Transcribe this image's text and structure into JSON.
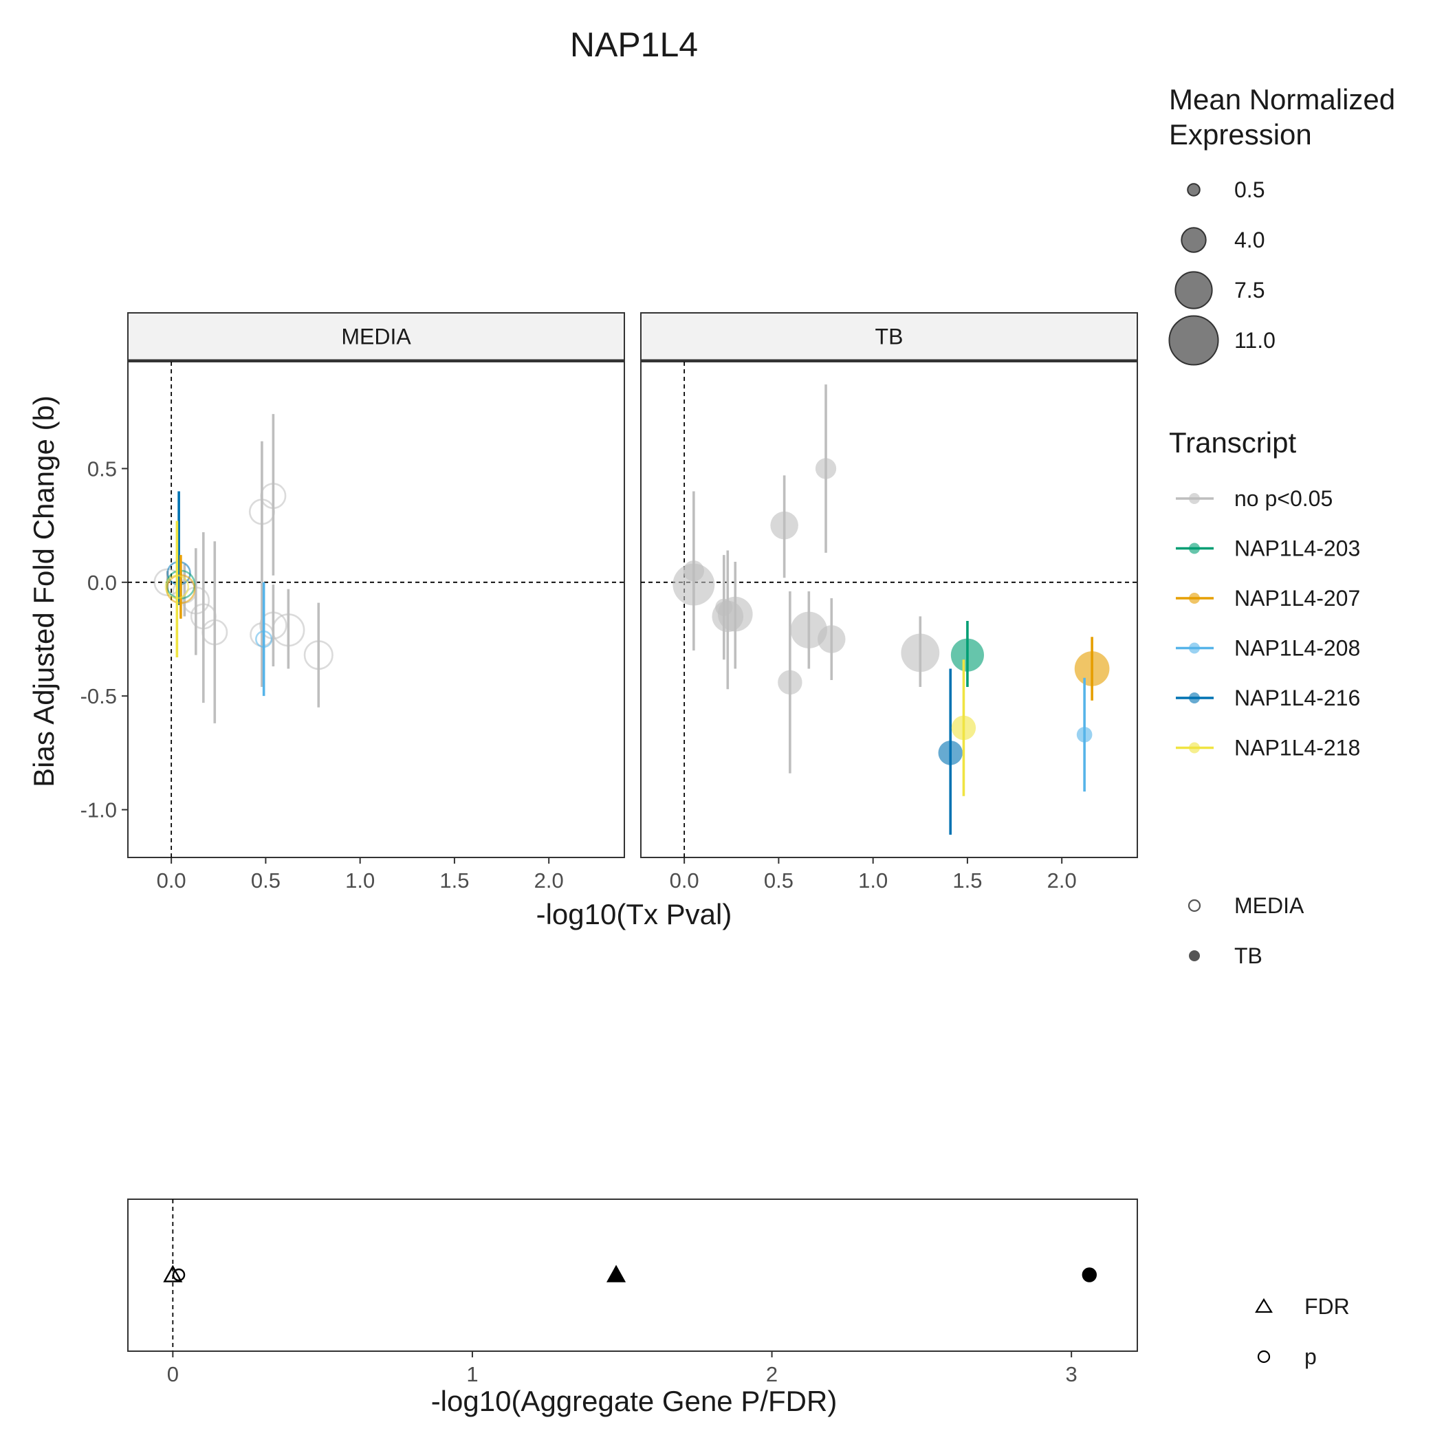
{
  "title": "NAP1L4",
  "colors": {
    "no p<0.05": "#BEBEBE",
    "NAP1L4-203": "#009E73",
    "NAP1L4-207": "#E69F00",
    "NAP1L4-208": "#56B4E9",
    "NAP1L4-216": "#0072B2",
    "NAP1L4-218": "#F0E442"
  },
  "legend": {
    "size_title_line1": "Mean Normalized",
    "size_title_line2": "Expression",
    "size_labels": [
      "0.5",
      "4.0",
      "7.5",
      "11.0"
    ],
    "size_values": [
      0.5,
      4.0,
      7.5,
      11.0
    ],
    "transcript_title": "Transcript",
    "transcripts": [
      "no p<0.05",
      "NAP1L4-203",
      "NAP1L4-207",
      "NAP1L4-208",
      "NAP1L4-216",
      "NAP1L4-218"
    ],
    "conditions": [
      "MEDIA",
      "TB"
    ],
    "stats": [
      "FDR",
      "p"
    ]
  },
  "chart_data": [
    {
      "type": "scatter",
      "facets": [
        "MEDIA",
        "TB"
      ],
      "xlabel": "-log10(Tx Pval)",
      "ylabel": "Bias Adjusted Fold Change (b)",
      "xlim": [
        -0.23,
        2.4
      ],
      "ylim": [
        -1.21,
        0.97
      ],
      "xticks": [
        0.0,
        0.5,
        1.0,
        1.5,
        2.0
      ],
      "xtick_labels": [
        "0.0",
        "0.5",
        "1.0",
        "1.5",
        "2.0"
      ],
      "yticks": [
        -1.0,
        -0.5,
        0.0,
        0.5
      ],
      "ytick_labels": [
        "-1.0",
        "-0.5",
        "0.0",
        "0.5"
      ],
      "reference_lines": {
        "x": 0,
        "y": 0
      },
      "points": [
        {
          "facet": "MEDIA",
          "transcript": "no p<0.05",
          "x": -0.02,
          "y": 0.0,
          "lo": -0.05,
          "hi": 0.05,
          "size": 4.5
        },
        {
          "facet": "MEDIA",
          "transcript": "no p<0.05",
          "x": 0.07,
          "y": -0.04,
          "lo": -0.15,
          "hi": 0.08,
          "size": 3.5
        },
        {
          "facet": "MEDIA",
          "transcript": "no p<0.05",
          "x": 0.13,
          "y": -0.08,
          "lo": -0.32,
          "hi": 0.15,
          "size": 4.5
        },
        {
          "facet": "MEDIA",
          "transcript": "no p<0.05",
          "x": 0.17,
          "y": -0.15,
          "lo": -0.53,
          "hi": 0.22,
          "size": 4.0
        },
        {
          "facet": "MEDIA",
          "transcript": "no p<0.05",
          "x": 0.23,
          "y": -0.22,
          "lo": -0.62,
          "hi": 0.18,
          "size": 4.0
        },
        {
          "facet": "MEDIA",
          "transcript": "no p<0.05",
          "x": 0.48,
          "y": 0.31,
          "lo": 0.0,
          "hi": 0.62,
          "size": 4.0
        },
        {
          "facet": "MEDIA",
          "transcript": "no p<0.05",
          "x": 0.54,
          "y": 0.38,
          "lo": 0.03,
          "hi": 0.74,
          "size": 4.0
        },
        {
          "facet": "MEDIA",
          "transcript": "no p<0.05",
          "x": 0.48,
          "y": -0.23,
          "lo": -0.46,
          "hi": 0.0,
          "size": 3.5
        },
        {
          "facet": "MEDIA",
          "transcript": "no p<0.05",
          "x": 0.54,
          "y": -0.19,
          "lo": -0.37,
          "hi": -0.01,
          "size": 4.5
        },
        {
          "facet": "MEDIA",
          "transcript": "no p<0.05",
          "x": 0.62,
          "y": -0.21,
          "lo": -0.38,
          "hi": -0.03,
          "size": 6.0
        },
        {
          "facet": "MEDIA",
          "transcript": "no p<0.05",
          "x": 0.78,
          "y": -0.32,
          "lo": -0.55,
          "hi": -0.09,
          "size": 5.0
        },
        {
          "facet": "MEDIA",
          "transcript": "NAP1L4-216",
          "x": 0.04,
          "y": 0.04,
          "lo": -0.1,
          "hi": 0.4,
          "size": 3.5
        },
        {
          "facet": "MEDIA",
          "transcript": "NAP1L4-203",
          "x": 0.05,
          "y": -0.01,
          "lo": -0.07,
          "hi": 0.05,
          "size": 5.0
        },
        {
          "facet": "MEDIA",
          "transcript": "NAP1L4-207",
          "x": 0.05,
          "y": -0.03,
          "lo": -0.16,
          "hi": 0.12,
          "size": 5.0
        },
        {
          "facet": "MEDIA",
          "transcript": "NAP1L4-218",
          "x": 0.03,
          "y": -0.02,
          "lo": -0.33,
          "hi": 0.27,
          "size": 3.5
        },
        {
          "facet": "MEDIA",
          "transcript": "NAP1L4-208",
          "x": 0.49,
          "y": -0.25,
          "lo": -0.5,
          "hi": 0.0,
          "size": 1.5
        },
        {
          "facet": "TB",
          "transcript": "no p<0.05",
          "x": 0.05,
          "y": 0.05,
          "lo": -0.3,
          "hi": 0.4,
          "size": 3.0
        },
        {
          "facet": "TB",
          "transcript": "no p<0.05",
          "x": 0.05,
          "y": -0.01,
          "lo": -0.1,
          "hi": 0.08,
          "size": 9.0
        },
        {
          "facet": "TB",
          "transcript": "no p<0.05",
          "x": 0.21,
          "y": -0.11,
          "lo": -0.34,
          "hi": 0.12,
          "size": 2.0
        },
        {
          "facet": "TB",
          "transcript": "no p<0.05",
          "x": 0.23,
          "y": -0.15,
          "lo": -0.47,
          "hi": 0.14,
          "size": 6.0
        },
        {
          "facet": "TB",
          "transcript": "no p<0.05",
          "x": 0.27,
          "y": -0.14,
          "lo": -0.38,
          "hi": 0.09,
          "size": 7.0
        },
        {
          "facet": "TB",
          "transcript": "no p<0.05",
          "x": 0.53,
          "y": 0.25,
          "lo": 0.02,
          "hi": 0.47,
          "size": 5.0
        },
        {
          "facet": "TB",
          "transcript": "no p<0.05",
          "x": 0.56,
          "y": -0.44,
          "lo": -0.84,
          "hi": -0.04,
          "size": 4.0
        },
        {
          "facet": "TB",
          "transcript": "no p<0.05",
          "x": 0.66,
          "y": -0.21,
          "lo": -0.38,
          "hi": -0.04,
          "size": 7.5
        },
        {
          "facet": "TB",
          "transcript": "no p<0.05",
          "x": 0.75,
          "y": 0.5,
          "lo": 0.13,
          "hi": 0.87,
          "size": 3.0
        },
        {
          "facet": "TB",
          "transcript": "no p<0.05",
          "x": 0.78,
          "y": -0.25,
          "lo": -0.43,
          "hi": -0.07,
          "size": 5.0
        },
        {
          "facet": "TB",
          "transcript": "no p<0.05",
          "x": 1.25,
          "y": -0.31,
          "lo": -0.46,
          "hi": -0.15,
          "size": 8.0
        },
        {
          "facet": "TB",
          "transcript": "NAP1L4-203",
          "x": 1.5,
          "y": -0.32,
          "lo": -0.46,
          "hi": -0.17,
          "size": 6.5
        },
        {
          "facet": "TB",
          "transcript": "NAP1L4-207",
          "x": 2.16,
          "y": -0.38,
          "lo": -0.52,
          "hi": -0.24,
          "size": 7.0
        },
        {
          "facet": "TB",
          "transcript": "NAP1L4-208",
          "x": 2.12,
          "y": -0.67,
          "lo": -0.92,
          "hi": -0.42,
          "size": 1.5
        },
        {
          "facet": "TB",
          "transcript": "NAP1L4-216",
          "x": 1.41,
          "y": -0.75,
          "lo": -1.11,
          "hi": -0.38,
          "size": 4.0
        },
        {
          "facet": "TB",
          "transcript": "NAP1L4-218",
          "x": 1.48,
          "y": -0.64,
          "lo": -0.94,
          "hi": -0.34,
          "size": 4.0
        }
      ]
    },
    {
      "type": "scatter",
      "xlabel": "-log10(Aggregate Gene P/FDR)",
      "xlim": [
        -0.15,
        3.22
      ],
      "xticks": [
        0,
        1,
        2,
        3
      ],
      "xtick_labels": [
        "0",
        "1",
        "2",
        "3"
      ],
      "reference_lines": {
        "x": 0
      },
      "points": [
        {
          "stat": "FDR",
          "condition": "MEDIA",
          "x": 0.0
        },
        {
          "stat": "p",
          "condition": "MEDIA",
          "x": 0.02
        },
        {
          "stat": "FDR",
          "condition": "TB",
          "x": 1.48
        },
        {
          "stat": "p",
          "condition": "TB",
          "x": 3.06
        }
      ]
    }
  ]
}
